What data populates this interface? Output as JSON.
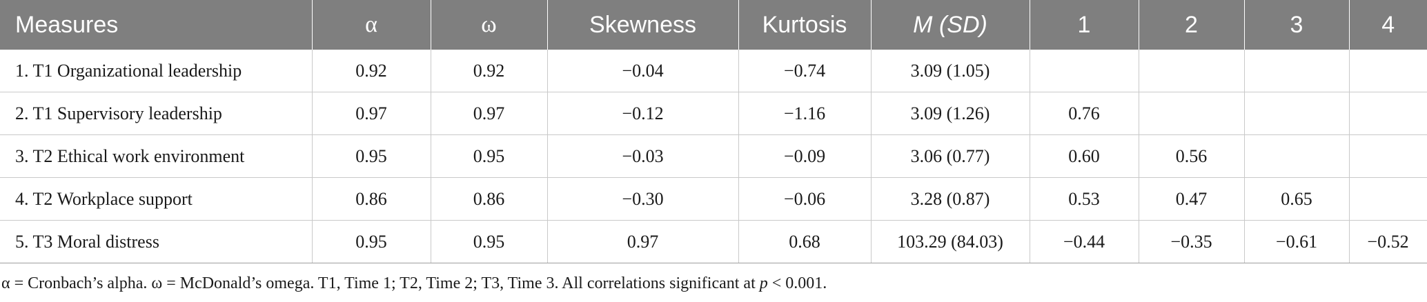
{
  "table": {
    "headers": [
      "Measures",
      "α",
      "ω",
      "Skewness",
      "Kurtosis",
      "M (SD)",
      "1",
      "2",
      "3",
      "4"
    ],
    "rows": [
      [
        "1. T1 Organizational leadership",
        "0.92",
        "0.92",
        "−0.04",
        "−0.74",
        "3.09 (1.05)",
        "",
        "",
        "",
        ""
      ],
      [
        "2. T1 Supervisory leadership",
        "0.97",
        "0.97",
        "−0.12",
        "−1.16",
        "3.09 (1.26)",
        "0.76",
        "",
        "",
        ""
      ],
      [
        "3. T2 Ethical work environment",
        "0.95",
        "0.95",
        "−0.03",
        "−0.09",
        "3.06 (0.77)",
        "0.60",
        "0.56",
        "",
        ""
      ],
      [
        "4. T2 Workplace support",
        "0.86",
        "0.86",
        "−0.30",
        "−0.06",
        "3.28 (0.87)",
        "0.53",
        "0.47",
        "0.65",
        ""
      ],
      [
        "5. T3 Moral distress",
        "0.95",
        "0.95",
        "0.97",
        "0.68",
        "103.29 (84.03)",
        "−0.44",
        "−0.35",
        "−0.61",
        "−0.52"
      ]
    ]
  },
  "note": {
    "prefix": "α = Cronbach’s alpha. ω = McDonald’s omega. T1, Time 1; T2, Time 2; T3, Time 3. All correlations significant at ",
    "p": "p",
    "suffix": " < 0.001."
  }
}
